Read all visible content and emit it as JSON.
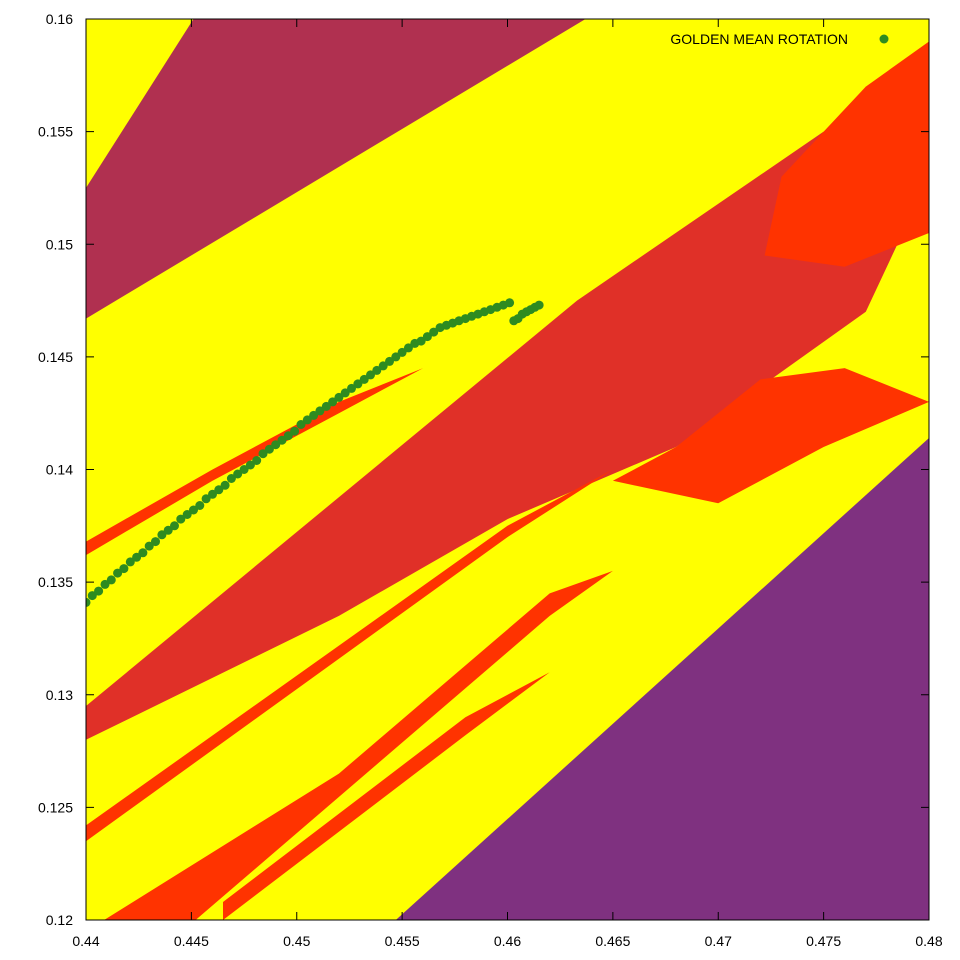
{
  "chart_data": {
    "type": "scatter",
    "title": "",
    "xlabel": "",
    "ylabel": "",
    "xlim": [
      0.44,
      0.48
    ],
    "ylim": [
      0.12,
      0.16
    ],
    "x_ticks": [
      "0.44",
      "0.445",
      "0.45",
      "0.455",
      "0.46",
      "0.465",
      "0.47",
      "0.475",
      "0.48"
    ],
    "y_ticks": [
      "0.12",
      "0.125",
      "0.13",
      "0.135",
      "0.14",
      "0.145",
      "0.15",
      "0.155",
      "0.16"
    ],
    "grid": false,
    "legend_position": "top-right",
    "background_regions": [
      {
        "region": "fill",
        "color": "#ffff00"
      },
      {
        "region": "upper-left-band",
        "color": "#b03050",
        "points": [
          [
            0.44,
            0.1525
          ],
          [
            0.4451,
            0.16
          ],
          [
            0.4637,
            0.16
          ],
          [
            0.44,
            0.1467
          ]
        ]
      },
      {
        "region": "lower-right-band",
        "color": "#7f3180",
        "points": [
          [
            0.4547,
            0.12
          ],
          [
            0.48,
            0.12
          ],
          [
            0.48,
            0.1414
          ]
        ]
      },
      {
        "region": "central-band",
        "color": "#e03028",
        "points": [
          [
            0.44,
            0.128
          ],
          [
            0.44,
            0.1295
          ],
          [
            0.4633,
            0.1475
          ],
          [
            0.475,
            0.155
          ],
          [
            0.48,
            0.153
          ],
          [
            0.477,
            0.147
          ],
          [
            0.468,
            0.141
          ],
          [
            0.46,
            0.1378
          ],
          [
            0.452,
            0.1335
          ]
        ]
      },
      {
        "region": "upper-orange-blob",
        "color": "#ff3300",
        "points": [
          [
            0.4722,
            0.1495
          ],
          [
            0.473,
            0.153
          ],
          [
            0.477,
            0.157
          ],
          [
            0.48,
            0.159
          ],
          [
            0.48,
            0.1505
          ],
          [
            0.476,
            0.149
          ]
        ]
      },
      {
        "region": "middle-orange-blob",
        "color": "#ff3300",
        "points": [
          [
            0.465,
            0.1395
          ],
          [
            0.468,
            0.141
          ],
          [
            0.472,
            0.144
          ],
          [
            0.476,
            0.1445
          ],
          [
            0.48,
            0.143
          ],
          [
            0.475,
            0.141
          ],
          [
            0.47,
            0.1385
          ]
        ]
      },
      {
        "region": "lower-orange-wedge",
        "color": "#ff3300",
        "points": [
          [
            0.44,
            0.12
          ],
          [
            0.4452,
            0.12
          ],
          [
            0.462,
            0.1335
          ],
          [
            0.465,
            0.1355
          ],
          [
            0.462,
            0.1345
          ],
          [
            0.452,
            0.1265
          ],
          [
            0.44,
            0.1195
          ]
        ]
      },
      {
        "region": "thin-red-line-1",
        "color": "#ff3300",
        "points": [
          [
            0.44,
            0.1362
          ],
          [
            0.446,
            0.1395
          ],
          [
            0.452,
            0.1425
          ],
          [
            0.456,
            0.1445
          ],
          [
            0.452,
            0.143
          ],
          [
            0.446,
            0.14
          ],
          [
            0.44,
            0.1368
          ]
        ]
      },
      {
        "region": "thin-red-line-2",
        "color": "#ff3300",
        "points": [
          [
            0.44,
            0.1235
          ],
          [
            0.46,
            0.137
          ],
          [
            0.465,
            0.14
          ],
          [
            0.46,
            0.1375
          ],
          [
            0.44,
            0.1242
          ]
        ]
      },
      {
        "region": "thin-red-line-3",
        "color": "#ff3300",
        "points": [
          [
            0.4465,
            0.12
          ],
          [
            0.458,
            0.1282
          ],
          [
            0.462,
            0.131
          ],
          [
            0.458,
            0.129
          ],
          [
            0.4465,
            0.1208
          ]
        ]
      }
    ],
    "series": [
      {
        "name": "GOLDEN MEAN ROTATION",
        "color": "#2e8b20",
        "marker": "circle",
        "x": [
          0.44,
          0.4403,
          0.4406,
          0.4409,
          0.4412,
          0.4415,
          0.4418,
          0.4421,
          0.4424,
          0.4427,
          0.443,
          0.4433,
          0.4436,
          0.4439,
          0.4442,
          0.4445,
          0.4448,
          0.4451,
          0.4454,
          0.4457,
          0.446,
          0.4463,
          0.4466,
          0.4469,
          0.4472,
          0.4475,
          0.4478,
          0.4481,
          0.4484,
          0.4487,
          0.449,
          0.4493,
          0.4496,
          0.4499,
          0.4502,
          0.4505,
          0.4508,
          0.4511,
          0.4514,
          0.4517,
          0.452,
          0.4523,
          0.4526,
          0.4529,
          0.4532,
          0.4535,
          0.4538,
          0.4541,
          0.4544,
          0.4547,
          0.455,
          0.4553,
          0.4556,
          0.4559,
          0.4562,
          0.4565,
          0.4568,
          0.4571,
          0.4574,
          0.4577,
          0.458,
          0.4583,
          0.4586,
          0.4589,
          0.4592,
          0.4595,
          0.4598,
          0.4601,
          0.4603,
          0.4605,
          0.4607,
          0.4609,
          0.4611,
          0.4613,
          0.4615
        ],
        "y": [
          0.1341,
          0.1344,
          0.1346,
          0.1349,
          0.1351,
          0.1354,
          0.1356,
          0.1359,
          0.1361,
          0.1363,
          0.1366,
          0.1368,
          0.1371,
          0.1373,
          0.1375,
          0.1378,
          0.138,
          0.1382,
          0.1384,
          0.1387,
          0.1389,
          0.1391,
          0.1393,
          0.1396,
          0.1398,
          0.14,
          0.1402,
          0.1404,
          0.1407,
          0.1409,
          0.1411,
          0.1413,
          0.1415,
          0.1417,
          0.142,
          0.1422,
          0.1424,
          0.1426,
          0.1428,
          0.143,
          0.1432,
          0.1434,
          0.1436,
          0.1438,
          0.144,
          0.1442,
          0.1444,
          0.1446,
          0.1448,
          0.145,
          0.1452,
          0.1454,
          0.1456,
          0.1457,
          0.1459,
          0.1461,
          0.1463,
          0.1464,
          0.1465,
          0.1466,
          0.1467,
          0.1468,
          0.1469,
          0.147,
          0.1471,
          0.1472,
          0.1473,
          0.1474,
          0.1466,
          0.1467,
          0.1469,
          0.147,
          0.1471,
          0.1472,
          0.1473
        ]
      }
    ]
  }
}
